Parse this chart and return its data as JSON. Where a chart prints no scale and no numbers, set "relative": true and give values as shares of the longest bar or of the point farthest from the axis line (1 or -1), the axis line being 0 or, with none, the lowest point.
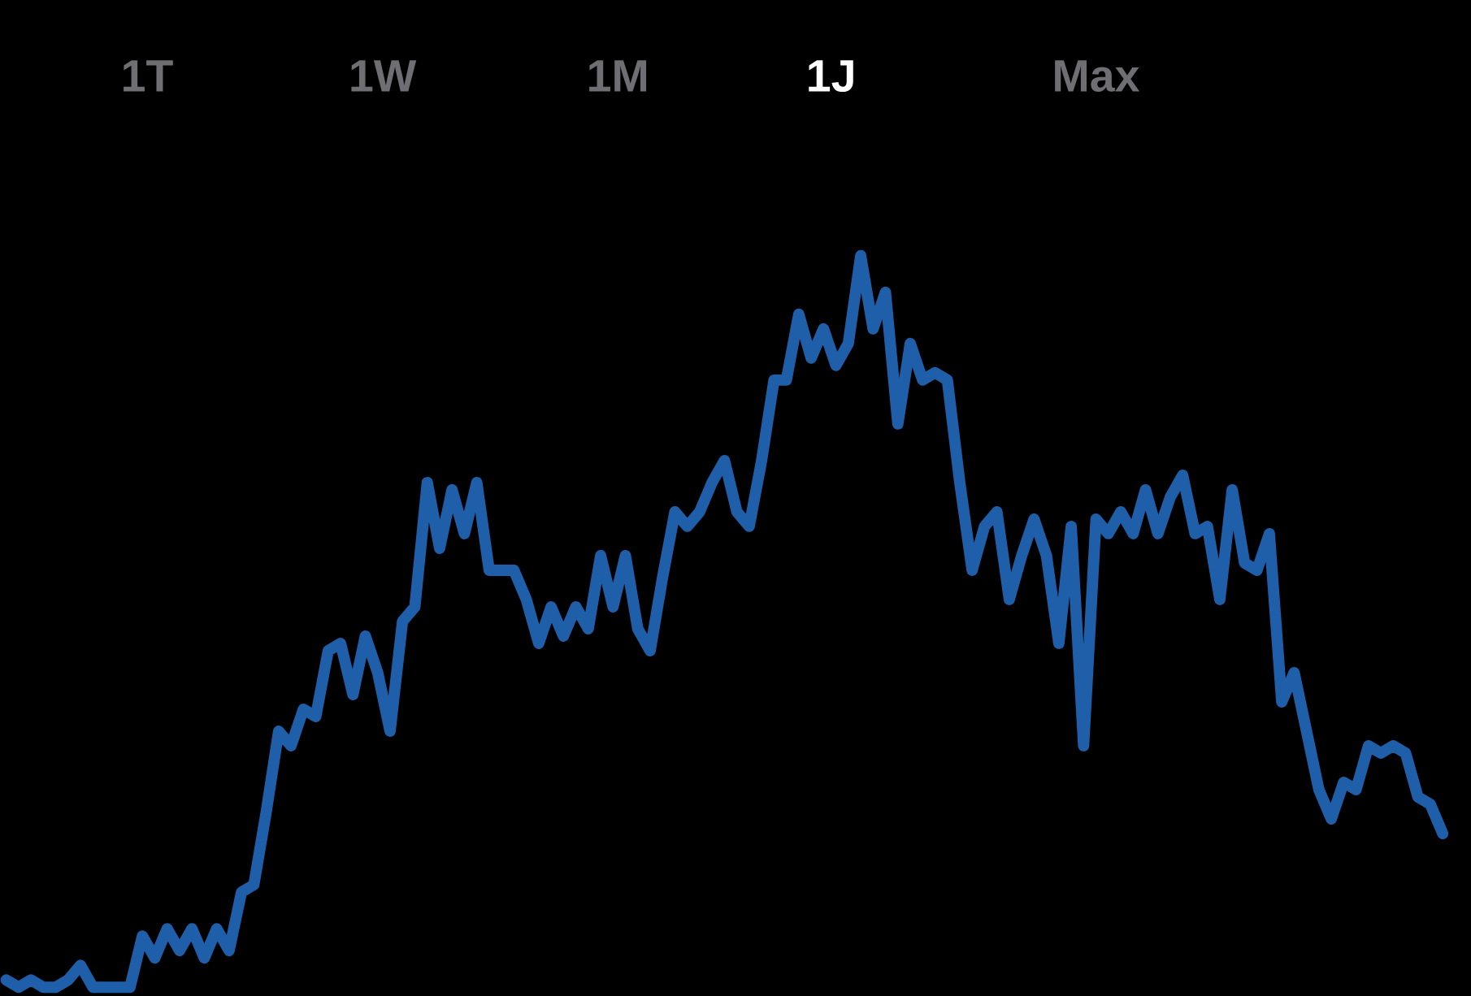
{
  "chart_data": {
    "type": "line",
    "relative": true,
    "annotations": [
      "1T",
      "1W",
      "1M",
      "1J",
      "Max"
    ],
    "series": [
      {
        "color": "#1f5ea8",
        "values": [
          0.01,
          0.0,
          0.01,
          0.0,
          0,
          0.01,
          0.03,
          0,
          0,
          0,
          0.0,
          0.07,
          0.04,
          0.08,
          0.05,
          0.08,
          0.04,
          0.08,
          0.05,
          0.13,
          0.14,
          0.24,
          0.35,
          0.33,
          0.38,
          0.37,
          0.46,
          0.47,
          0.4,
          0.48,
          0.43,
          0.35,
          0.5,
          0.52,
          0.69,
          0.6,
          0.68,
          0.62,
          0.69,
          0.57,
          0.57,
          0.57,
          0.53,
          0.47,
          0.52,
          0.48,
          0.52,
          0.49,
          0.59,
          0.52,
          0.59,
          0.49,
          0.46,
          0.56,
          0.65,
          0.63,
          0.65,
          0.69,
          0.72,
          0.65,
          0.63,
          0.72,
          0.83,
          0.83,
          0.92,
          0.86,
          0.9,
          0.85,
          0.88,
          1,
          0.9,
          0.95,
          0.77,
          0.88,
          0.83,
          0.84,
          0.83,
          0.69,
          0.57,
          0.63,
          0.65,
          0.53,
          0.59,
          0.64,
          0.59,
          0.47,
          0.63,
          0.33,
          0.64,
          0.62,
          0.65,
          0.62,
          0.68,
          0.62,
          0.67,
          0.7,
          0.62,
          0.63,
          0.53,
          0.68,
          0.58,
          0.57,
          0.62,
          0.39,
          0.43,
          0.35,
          0.27,
          0.23,
          0.28,
          0.27,
          0.33,
          0.32,
          0.33,
          0.32,
          0.26,
          0.25,
          0.21
        ]
      }
    ],
    "categories": [
      null,
      null,
      null,
      null,
      null,
      null,
      null,
      null,
      null,
      null,
      null,
      null,
      null,
      null,
      null,
      null,
      null,
      null,
      null,
      null,
      null,
      null,
      null,
      null,
      null,
      null,
      null,
      null,
      null,
      null,
      null,
      null,
      null,
      null,
      null,
      null,
      null,
      null,
      null,
      null,
      null,
      null,
      null,
      null,
      null,
      null,
      null,
      null,
      null,
      null,
      null,
      null,
      null,
      null,
      null,
      null,
      null,
      null,
      null,
      null,
      null,
      null,
      null,
      null,
      null,
      null,
      null,
      null,
      null,
      null,
      null,
      null,
      null,
      null,
      null,
      null,
      null,
      null,
      null,
      null,
      null,
      null,
      null,
      null,
      null,
      null,
      null,
      null,
      null,
      null,
      null,
      null,
      null,
      null,
      null,
      null,
      null,
      null,
      null,
      null,
      null,
      null,
      null,
      null,
      null,
      null,
      null,
      null,
      null,
      null,
      null,
      null,
      null,
      null,
      null,
      null,
      null
    ],
    "grid": false,
    "legend": false
  }
}
